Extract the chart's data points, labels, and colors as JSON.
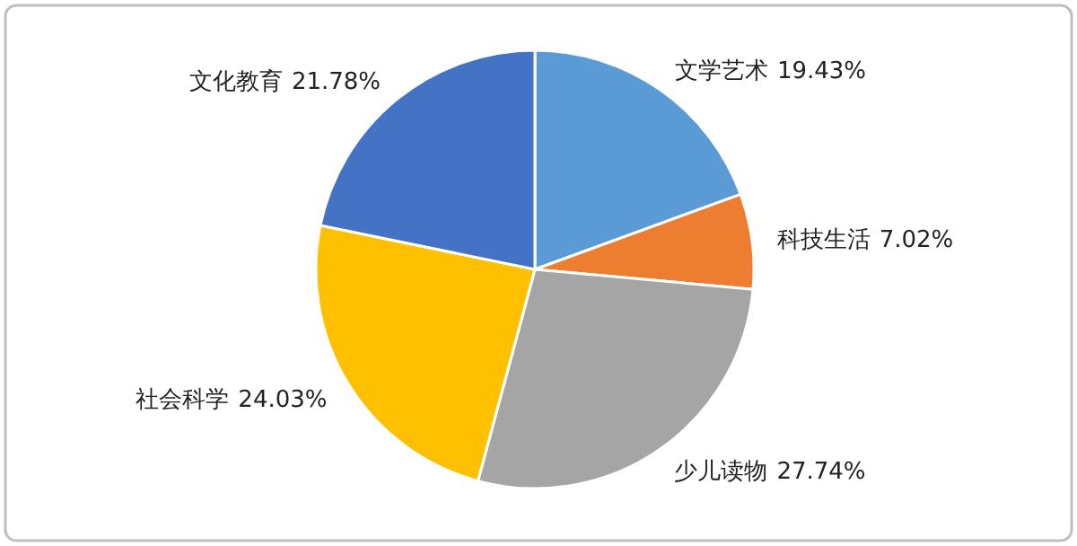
{
  "chart_data": {
    "type": "pie",
    "categories": [
      "文学艺术",
      "科技生活",
      "少儿读物",
      "社会科学",
      "文化教育"
    ],
    "values": [
      19.43,
      7.02,
      27.74,
      24.03,
      21.78
    ],
    "colors": [
      "#5b9bd5",
      "#ed7d31",
      "#a5a5a5",
      "#ffc000",
      "#4472c4"
    ],
    "value_labels": [
      "19.43%",
      "7.02%",
      "27.74%",
      "24.03%",
      "21.78%"
    ],
    "legend": false
  }
}
